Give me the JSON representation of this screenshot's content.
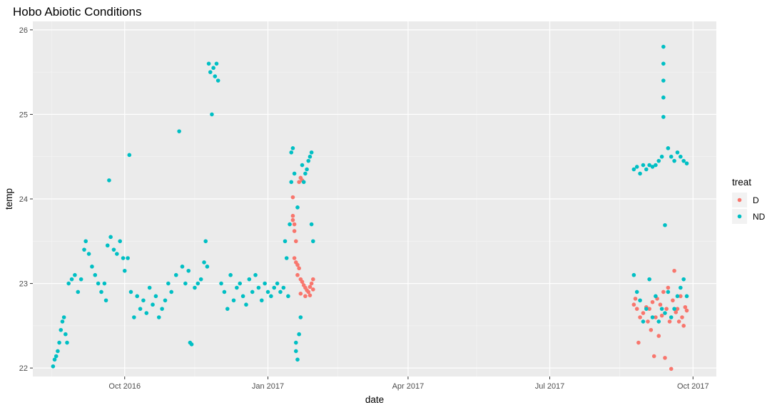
{
  "chart_data": {
    "type": "scatter",
    "title": "Hobo Abiotic Conditions",
    "xlabel": "date",
    "ylabel": "temp",
    "xlim": [
      "2016-08-03",
      "2017-10-16"
    ],
    "ylim": [
      21.9,
      26.1
    ],
    "x_ticks": [
      {
        "date": "2016-10-01",
        "label": "Oct 2016"
      },
      {
        "date": "2017-01-01",
        "label": "Jan 2017"
      },
      {
        "date": "2017-04-01",
        "label": "Apr 2017"
      },
      {
        "date": "2017-07-01",
        "label": "Jul 2017"
      },
      {
        "date": "2017-10-01",
        "label": "Oct 2017"
      }
    ],
    "x_minor_ticks": [
      "2016-08-15",
      "2016-11-15",
      "2017-02-15",
      "2017-05-15",
      "2017-08-15"
    ],
    "y_ticks": [
      22,
      23,
      24,
      25,
      26
    ],
    "grid": true,
    "legend": {
      "title": "treat",
      "position": "right"
    },
    "series": [
      {
        "name": "D",
        "color": "#F8766D",
        "points": [
          [
            "2017-01-17",
            24.02
          ],
          [
            "2017-01-17",
            23.8
          ],
          [
            "2017-01-17",
            23.75
          ],
          [
            "2017-01-18",
            23.7
          ],
          [
            "2017-01-18",
            23.62
          ],
          [
            "2017-01-19",
            23.5
          ],
          [
            "2017-01-18",
            23.3
          ],
          [
            "2017-01-19",
            23.25
          ],
          [
            "2017-01-20",
            23.22
          ],
          [
            "2017-01-21",
            23.18
          ],
          [
            "2017-01-20",
            23.1
          ],
          [
            "2017-01-22",
            23.05
          ],
          [
            "2017-01-23",
            23.02
          ],
          [
            "2017-01-24",
            22.98
          ],
          [
            "2017-01-25",
            22.95
          ],
          [
            "2017-01-26",
            22.92
          ],
          [
            "2017-01-27",
            22.9
          ],
          [
            "2017-01-28",
            22.96
          ],
          [
            "2017-01-29",
            23.0
          ],
          [
            "2017-01-30",
            23.05
          ],
          [
            "2017-01-22",
            22.88
          ],
          [
            "2017-01-25",
            22.85
          ],
          [
            "2017-01-28",
            22.86
          ],
          [
            "2017-01-30",
            22.93
          ],
          [
            "2017-01-21",
            24.2
          ],
          [
            "2017-01-22",
            24.25
          ],
          [
            "2017-01-23",
            24.22
          ],
          [
            "2017-08-24",
            22.75
          ],
          [
            "2017-08-25",
            22.82
          ],
          [
            "2017-08-26",
            22.7
          ],
          [
            "2017-08-27",
            22.3
          ],
          [
            "2017-08-28",
            22.6
          ],
          [
            "2017-08-30",
            22.65
          ],
          [
            "2017-09-01",
            22.72
          ],
          [
            "2017-09-02",
            22.55
          ],
          [
            "2017-09-03",
            22.7
          ],
          [
            "2017-09-04",
            22.45
          ],
          [
            "2017-09-05",
            22.78
          ],
          [
            "2017-09-06",
            22.14
          ],
          [
            "2017-09-07",
            22.6
          ],
          [
            "2017-09-08",
            22.82
          ],
          [
            "2017-09-09",
            22.38
          ],
          [
            "2017-09-10",
            22.75
          ],
          [
            "2017-09-11",
            22.62
          ],
          [
            "2017-09-12",
            22.9
          ],
          [
            "2017-09-13",
            22.12
          ],
          [
            "2017-09-14",
            22.7
          ],
          [
            "2017-09-15",
            22.95
          ],
          [
            "2017-09-16",
            22.55
          ],
          [
            "2017-09-17",
            21.99
          ],
          [
            "2017-09-18",
            22.8
          ],
          [
            "2017-09-19",
            23.15
          ],
          [
            "2017-09-20",
            22.66
          ],
          [
            "2017-09-21",
            22.7
          ],
          [
            "2017-09-22",
            22.55
          ],
          [
            "2017-09-23",
            22.85
          ],
          [
            "2017-09-24",
            22.6
          ],
          [
            "2017-09-25",
            22.5
          ],
          [
            "2017-09-26",
            22.72
          ],
          [
            "2017-09-27",
            22.68
          ]
        ]
      },
      {
        "name": "ND",
        "color": "#00BFC4",
        "points": [
          [
            "2016-08-16",
            22.02
          ],
          [
            "2016-08-17",
            22.1
          ],
          [
            "2016-08-18",
            22.14
          ],
          [
            "2016-08-19",
            22.2
          ],
          [
            "2016-08-20",
            22.3
          ],
          [
            "2016-08-21",
            22.45
          ],
          [
            "2016-08-22",
            22.55
          ],
          [
            "2016-08-23",
            22.6
          ],
          [
            "2016-08-24",
            22.4
          ],
          [
            "2016-08-25",
            22.3
          ],
          [
            "2016-08-26",
            23.0
          ],
          [
            "2016-08-28",
            23.05
          ],
          [
            "2016-08-30",
            23.1
          ],
          [
            "2016-09-01",
            22.9
          ],
          [
            "2016-09-03",
            23.05
          ],
          [
            "2016-09-05",
            23.4
          ],
          [
            "2016-09-06",
            23.5
          ],
          [
            "2016-09-08",
            23.35
          ],
          [
            "2016-09-10",
            23.2
          ],
          [
            "2016-09-12",
            23.1
          ],
          [
            "2016-09-14",
            23.0
          ],
          [
            "2016-09-16",
            22.9
          ],
          [
            "2016-09-18",
            23.0
          ],
          [
            "2016-09-19",
            22.8
          ],
          [
            "2016-09-20",
            23.45
          ],
          [
            "2016-09-21",
            24.22
          ],
          [
            "2016-09-22",
            23.55
          ],
          [
            "2016-09-24",
            23.4
          ],
          [
            "2016-09-26",
            23.35
          ],
          [
            "2016-09-28",
            23.5
          ],
          [
            "2016-09-30",
            23.3
          ],
          [
            "2016-10-01",
            23.15
          ],
          [
            "2016-10-03",
            23.3
          ],
          [
            "2016-10-04",
            24.52
          ],
          [
            "2016-10-05",
            22.9
          ],
          [
            "2016-10-07",
            22.6
          ],
          [
            "2016-10-09",
            22.85
          ],
          [
            "2016-10-11",
            22.7
          ],
          [
            "2016-10-13",
            22.8
          ],
          [
            "2016-10-15",
            22.65
          ],
          [
            "2016-10-17",
            22.95
          ],
          [
            "2016-10-19",
            22.75
          ],
          [
            "2016-10-21",
            22.85
          ],
          [
            "2016-10-23",
            22.6
          ],
          [
            "2016-10-25",
            22.7
          ],
          [
            "2016-10-27",
            22.8
          ],
          [
            "2016-10-29",
            23.0
          ],
          [
            "2016-10-31",
            22.9
          ],
          [
            "2016-11-03",
            23.1
          ],
          [
            "2016-11-05",
            24.8
          ],
          [
            "2016-11-07",
            23.2
          ],
          [
            "2016-11-09",
            23.0
          ],
          [
            "2016-11-11",
            23.15
          ],
          [
            "2016-11-12",
            22.3
          ],
          [
            "2016-11-13",
            22.28
          ],
          [
            "2016-11-15",
            22.95
          ],
          [
            "2016-11-17",
            23.0
          ],
          [
            "2016-11-19",
            23.05
          ],
          [
            "2016-11-21",
            23.25
          ],
          [
            "2016-11-22",
            23.5
          ],
          [
            "2016-11-23",
            23.2
          ],
          [
            "2016-11-24",
            25.6
          ],
          [
            "2016-11-25",
            25.5
          ],
          [
            "2016-11-26",
            25.0
          ],
          [
            "2016-11-27",
            25.55
          ],
          [
            "2016-11-28",
            25.45
          ],
          [
            "2016-11-29",
            25.6
          ],
          [
            "2016-11-30",
            25.4
          ],
          [
            "2016-12-02",
            23.0
          ],
          [
            "2016-12-04",
            22.9
          ],
          [
            "2016-12-06",
            22.7
          ],
          [
            "2016-12-08",
            23.1
          ],
          [
            "2016-12-10",
            22.8
          ],
          [
            "2016-12-12",
            22.95
          ],
          [
            "2016-12-14",
            23.0
          ],
          [
            "2016-12-16",
            22.85
          ],
          [
            "2016-12-18",
            22.75
          ],
          [
            "2016-12-20",
            23.05
          ],
          [
            "2016-12-22",
            22.9
          ],
          [
            "2016-12-24",
            23.1
          ],
          [
            "2016-12-26",
            22.95
          ],
          [
            "2016-12-28",
            22.8
          ],
          [
            "2016-12-30",
            23.0
          ],
          [
            "2017-01-01",
            22.9
          ],
          [
            "2017-01-03",
            22.85
          ],
          [
            "2017-01-05",
            22.95
          ],
          [
            "2017-01-07",
            23.0
          ],
          [
            "2017-01-09",
            22.9
          ],
          [
            "2017-01-11",
            22.95
          ],
          [
            "2017-01-12",
            23.5
          ],
          [
            "2017-01-13",
            23.3
          ],
          [
            "2017-01-14",
            22.85
          ],
          [
            "2017-01-15",
            23.7
          ],
          [
            "2017-01-16",
            24.2
          ],
          [
            "2017-01-16",
            24.55
          ],
          [
            "2017-01-17",
            24.6
          ],
          [
            "2017-01-18",
            24.3
          ],
          [
            "2017-01-19",
            22.3
          ],
          [
            "2017-01-19",
            22.2
          ],
          [
            "2017-01-20",
            22.1
          ],
          [
            "2017-01-20",
            23.9
          ],
          [
            "2017-01-21",
            22.4
          ],
          [
            "2017-01-22",
            22.6
          ],
          [
            "2017-01-23",
            24.4
          ],
          [
            "2017-01-24",
            24.2
          ],
          [
            "2017-01-25",
            24.3
          ],
          [
            "2017-01-26",
            24.35
          ],
          [
            "2017-01-27",
            24.45
          ],
          [
            "2017-01-28",
            24.5
          ],
          [
            "2017-01-29",
            24.55
          ],
          [
            "2017-01-29",
            23.7
          ],
          [
            "2017-01-30",
            23.5
          ],
          [
            "2017-08-24",
            24.35
          ],
          [
            "2017-08-26",
            24.38
          ],
          [
            "2017-08-28",
            24.3
          ],
          [
            "2017-08-30",
            24.4
          ],
          [
            "2017-09-01",
            24.35
          ],
          [
            "2017-09-03",
            24.4
          ],
          [
            "2017-09-05",
            24.38
          ],
          [
            "2017-09-07",
            24.4
          ],
          [
            "2017-09-09",
            24.45
          ],
          [
            "2017-09-11",
            24.5
          ],
          [
            "2017-09-12",
            25.8
          ],
          [
            "2017-09-12",
            25.6
          ],
          [
            "2017-09-12",
            25.4
          ],
          [
            "2017-09-12",
            25.2
          ],
          [
            "2017-09-12",
            24.97
          ],
          [
            "2017-09-13",
            23.69
          ],
          [
            "2017-09-15",
            24.6
          ],
          [
            "2017-09-17",
            24.5
          ],
          [
            "2017-09-19",
            24.45
          ],
          [
            "2017-09-21",
            24.55
          ],
          [
            "2017-09-23",
            24.5
          ],
          [
            "2017-09-25",
            24.45
          ],
          [
            "2017-09-27",
            24.42
          ],
          [
            "2017-08-24",
            23.1
          ],
          [
            "2017-08-26",
            22.9
          ],
          [
            "2017-08-28",
            22.8
          ],
          [
            "2017-08-30",
            22.55
          ],
          [
            "2017-09-01",
            22.7
          ],
          [
            "2017-09-03",
            23.05
          ],
          [
            "2017-09-05",
            22.6
          ],
          [
            "2017-09-07",
            22.85
          ],
          [
            "2017-09-09",
            22.55
          ],
          [
            "2017-09-11",
            22.7
          ],
          [
            "2017-09-13",
            22.65
          ],
          [
            "2017-09-15",
            22.9
          ],
          [
            "2017-09-17",
            22.6
          ],
          [
            "2017-09-19",
            22.7
          ],
          [
            "2017-09-21",
            22.85
          ],
          [
            "2017-09-23",
            22.95
          ],
          [
            "2017-09-25",
            23.05
          ],
          [
            "2017-09-27",
            22.85
          ]
        ]
      }
    ]
  }
}
